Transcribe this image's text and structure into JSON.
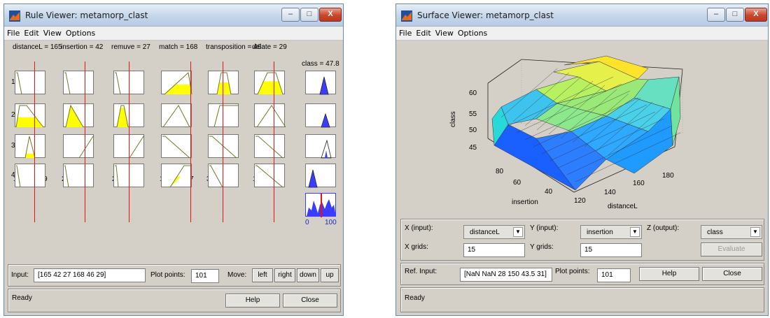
{
  "rule_viewer": {
    "title": "Rule Viewer: metamorp_clast",
    "menu": [
      "File",
      "Edit",
      "View",
      "Options"
    ],
    "window_buttons": {
      "minimize": "–",
      "maximize": "□",
      "close": "X"
    },
    "inputs": [
      {
        "label": "distanceL = 165",
        "min": "120",
        "max": "189"
      },
      {
        "label": "insertion = 42",
        "min": "24",
        "max": "92"
      },
      {
        "label": "remuve = 27",
        "min": "21",
        "max": "35"
      },
      {
        "label": "match = 168",
        "min": "113",
        "max": "187"
      },
      {
        "label": "transposition = 46",
        "min": "34",
        "max": "53"
      },
      {
        "label": "delate = 29",
        "min": "19",
        "max": "43"
      }
    ],
    "output": {
      "label": "class = 47.8",
      "min": "0",
      "max": "100"
    },
    "rules": [
      "1",
      "2",
      "3",
      "4"
    ],
    "input_label": "Input:",
    "input_value": "[165 42 27 168 46 29]",
    "plot_points_label": "Plot points:",
    "plot_points_value": "101",
    "move_label": "Move:",
    "move_buttons": [
      "left",
      "right",
      "down",
      "up"
    ],
    "help": "Help",
    "close": "Close",
    "status": "Ready",
    "colors": {
      "input_fill": "#ffff00",
      "output_fill": "#3c3cff",
      "indicator": "#ee1111"
    }
  },
  "surface_viewer": {
    "title": "Surface Viewer: metamorp_clast",
    "menu": [
      "File",
      "Edit",
      "View",
      "Options"
    ],
    "window_buttons": {
      "minimize": "–",
      "maximize": "□",
      "close": "X"
    },
    "plot": {
      "zlabel": "class",
      "xlabel": "distanceL",
      "ylabel": "insertion",
      "z_ticks": [
        "45",
        "50",
        "55",
        "60"
      ],
      "x_ticks": [
        "120",
        "140",
        "160",
        "180"
      ],
      "y_ticks": [
        "40",
        "60",
        "80"
      ]
    },
    "x_input_label": "X (input):",
    "x_input_value": "distanceL",
    "y_input_label": "Y (input):",
    "y_input_value": "insertion",
    "z_output_label": "Z (output):",
    "z_output_value": "class",
    "x_grids_label": "X grids:",
    "x_grids_value": "15",
    "y_grids_label": "Y grids:",
    "y_grids_value": "15",
    "evaluate": "Evaluate",
    "ref_input_label": "Ref. Input:",
    "ref_input_value": "[NaN NaN 28 150 43.5 31]",
    "plot_points_label": "Plot points:",
    "plot_points_value": "101",
    "help": "Help",
    "close": "Close",
    "status": "Ready"
  }
}
